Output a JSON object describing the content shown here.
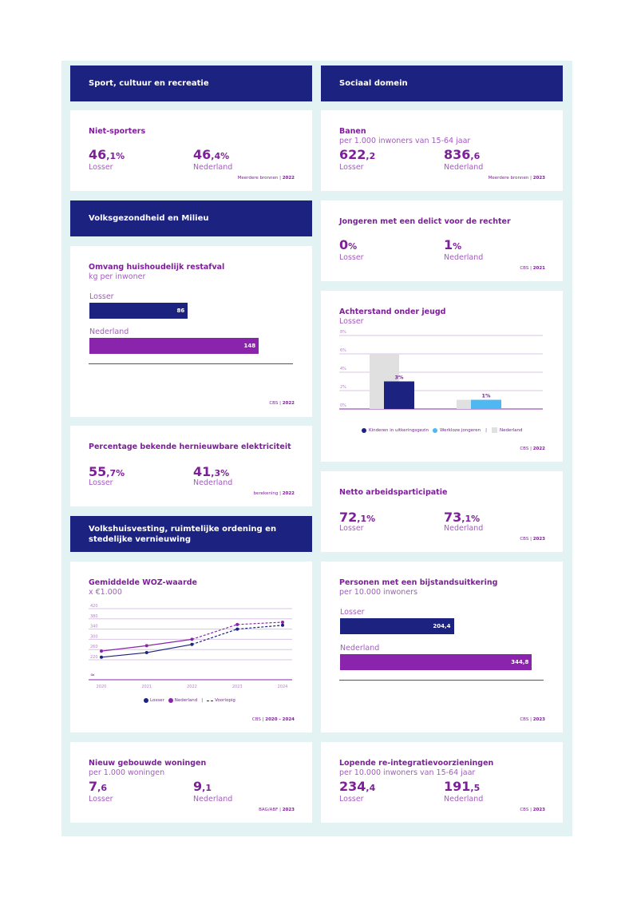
{
  "colors": {
    "header_bg": "#1c2280",
    "frame_bg": "#e3f3f3",
    "purple": "#8a24ad",
    "navy": "#1c2280",
    "light_blue": "#4fb8f0",
    "gray": "#e0e0e0"
  },
  "sections": {
    "sport": "Sport, cultuur en recreatie",
    "sociaal": "Sociaal domein",
    "gezondheid": "Volksgezondheid en Milieu",
    "volkshuisvesting": "Volkshuisvesting, ruimtelijke ordening en stedelijke vernieuwing"
  },
  "niet_sporters": {
    "title": "Niet-sporters",
    "losser_int": "46",
    "losser_dec": ",1%",
    "nl_int": "46",
    "nl_dec": ",4%",
    "losser_label": "Losser",
    "nl_label": "Nederland",
    "source": "Meerdere bronnen",
    "year": "2022"
  },
  "banen": {
    "title": "Banen",
    "subtitle": "per 1.000 inwoners van 15-64 jaar",
    "losser_int": "622",
    "losser_dec": ",2",
    "nl_int": "836",
    "nl_dec": ",6",
    "losser_label": "Losser",
    "nl_label": "Nederland",
    "source": "Meerdere bronnen",
    "year": "2023"
  },
  "jongeren_delict": {
    "title": "Jongeren met een delict voor de rechter",
    "losser_int": "0",
    "losser_dec": "%",
    "nl_int": "1",
    "nl_dec": "%",
    "losser_label": "Losser",
    "nl_label": "Nederland",
    "source": "CBS",
    "year": "2021"
  },
  "restafval": {
    "title": "Omvang huishoudelijk restafval",
    "subtitle": "kg per inwoner",
    "losser_label": "Losser",
    "losser_value": 86,
    "losser_text": "86",
    "nl_label": "Nederland",
    "nl_value": 148,
    "nl_text": "148",
    "max": 180,
    "source": "CBS",
    "year": "2022"
  },
  "achterstand": {
    "title": "Achterstand onder jeugd",
    "subtitle": "Losser",
    "source": "CBS",
    "year": "2022",
    "legend": {
      "a": "Kinderen in uitkeringsgezin",
      "b": "Werkloze jongeren",
      "sep": "|",
      "c": "Nederland"
    }
  },
  "hernieuwbaar": {
    "title": "Percentage bekende hernieuwbare elektriciteit",
    "losser_int": "55",
    "losser_dec": ",7%",
    "nl_int": "41",
    "nl_dec": ",3%",
    "losser_label": "Losser",
    "nl_label": "Nederland",
    "source": "berekening",
    "year": "2022"
  },
  "arbeidsparticipatie": {
    "title": "Netto arbeidsparticipatie",
    "losser_int": "72",
    "losser_dec": ",1%",
    "nl_int": "73",
    "nl_dec": ",1%",
    "losser_label": "Losser",
    "nl_label": "Nederland",
    "source": "CBS",
    "year": "2023"
  },
  "woz": {
    "title": "Gemiddelde WOZ-waarde",
    "subtitle": "x €1.000",
    "source": "CBS",
    "year": "2020 - 2024",
    "legend": {
      "a": "Losser",
      "b": "Nederland",
      "sep": "|",
      "c": "Voorlopig"
    }
  },
  "bijstand": {
    "title": "Personen met een bijstandsuitkering",
    "subtitle": "per 10.000 inwoners",
    "losser_label": "Losser",
    "losser_value": 204.4,
    "losser_text": "204,4",
    "nl_label": "Nederland",
    "nl_value": 344.8,
    "nl_text": "344,8",
    "max": 360,
    "source": "CBS",
    "year": "2023"
  },
  "nieuwbouw": {
    "title": "Nieuw gebouwde woningen",
    "subtitle": "per 1.000 woningen",
    "losser_int": "7",
    "losser_dec": ",6",
    "nl_int": "9",
    "nl_dec": ",1",
    "losser_label": "Losser",
    "nl_label": "Nederland",
    "source": "BAG/ABF",
    "year": "2023"
  },
  "reintegratie": {
    "title": "Lopende re-integratievoorzieningen",
    "subtitle": "per 10.000 inwoners van 15-64 jaar",
    "losser_int": "234",
    "losser_dec": ",4",
    "nl_int": "191",
    "nl_dec": ",5",
    "losser_label": "Losser",
    "nl_label": "Nederland",
    "source": "CBS",
    "year": "2023"
  },
  "chart_data": [
    {
      "type": "bar",
      "title": "Achterstand onder jeugd",
      "subtitle": "Losser",
      "categories": [
        "Kinderen in uitkeringsgezin",
        "Werkloze jongeren"
      ],
      "series": [
        {
          "name": "Losser",
          "values": [
            3,
            1
          ],
          "labels": [
            "3%",
            "1%"
          ],
          "colors": [
            "#1c2280",
            "#4fb8f0"
          ]
        },
        {
          "name": "Nederland",
          "values": [
            6,
            1
          ],
          "color": "#e0e0e0"
        }
      ],
      "yticks": [
        "0%",
        "2%",
        "4%",
        "6%",
        "8%"
      ],
      "ylim": [
        0,
        8
      ],
      "grid": true,
      "legend": "bottom"
    },
    {
      "type": "line",
      "title": "Gemiddelde WOZ-waarde",
      "ylabel": "x €1.000",
      "x": [
        "2020",
        "2021",
        "2022",
        "2023",
        "2024"
      ],
      "series": [
        {
          "name": "Losser",
          "values": [
            230,
            248,
            280,
            340,
            355
          ],
          "color": "#1c2280"
        },
        {
          "name": "Nederland",
          "values": [
            254,
            275,
            300,
            358,
            367
          ],
          "color": "#8a24ad"
        }
      ],
      "provisional_from": "2022",
      "yticks": [
        "220",
        "260",
        "300",
        "340",
        "380",
        "420"
      ],
      "ylim": [
        200,
        420
      ],
      "grid": true,
      "legend": "bottom"
    }
  ]
}
